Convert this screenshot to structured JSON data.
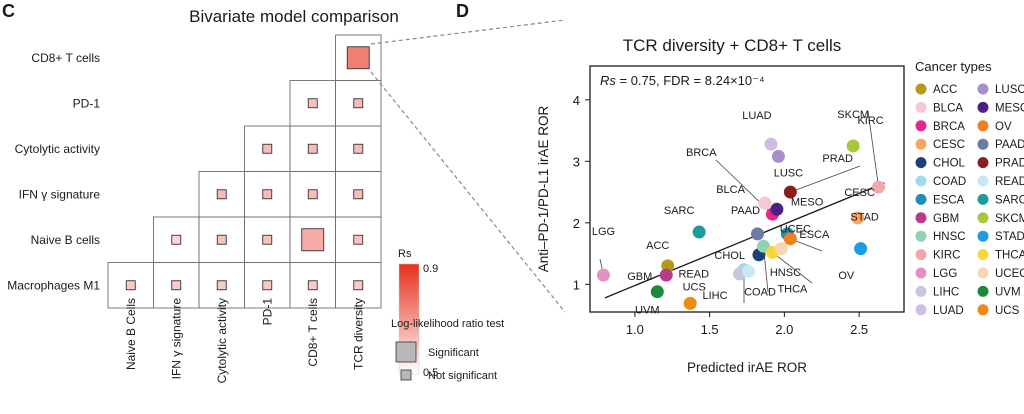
{
  "panel_c": {
    "letter": "C",
    "title": "Bivariate model comparison",
    "legend_rs_title": "Rs",
    "legend_rs_max": "0.9",
    "legend_rs_min": "0.5",
    "legend_test_title": "Log-likelihood ratio test",
    "legend_significant": "Significant",
    "legend_not_significant": "Not significant"
  },
  "panel_d": {
    "letter": "D",
    "stat_rs_symbol": "Rs",
    "stat_rs_rest": " = 0.75, FDR = 8.24×10⁻⁴",
    "legend_title": "Cancer types"
  },
  "colors": {
    "heat_low": "#ffffff",
    "heat_high": "#e8301d",
    "fit_line": "#1a1a1a",
    "dashed": "#888888"
  },
  "chart_data": [
    {
      "type": "heatmap",
      "title": "Bivariate model comparison",
      "rows": [
        "CD8+ T cells",
        "PD-1",
        "Cytolytic activity",
        "IFN γ signature",
        "Naive B cells",
        "Macrophages M1"
      ],
      "columns": [
        "Naive B Cells",
        "IFN γ signature",
        "Cytolytic activity",
        "PD-1",
        "CD8+ T cells",
        "TCR diversity"
      ],
      "color_scale": {
        "label": "Rs",
        "min": 0.5,
        "max": 0.9
      },
      "cells": [
        {
          "row": "CD8+ T cells",
          "col": "TCR diversity",
          "rs": 0.75,
          "significant": true
        },
        {
          "row": "PD-1",
          "col": "CD8+ T cells",
          "rs": 0.62,
          "significant": false
        },
        {
          "row": "PD-1",
          "col": "TCR diversity",
          "rs": 0.63,
          "significant": false
        },
        {
          "row": "Cytolytic activity",
          "col": "PD-1",
          "rs": 0.63,
          "significant": false
        },
        {
          "row": "Cytolytic activity",
          "col": "CD8+ T cells",
          "rs": 0.63,
          "significant": false
        },
        {
          "row": "Cytolytic activity",
          "col": "TCR diversity",
          "rs": 0.63,
          "significant": false
        },
        {
          "row": "IFN γ signature",
          "col": "Cytolytic activity",
          "rs": 0.63,
          "significant": false
        },
        {
          "row": "IFN γ signature",
          "col": "PD-1",
          "rs": 0.63,
          "significant": false
        },
        {
          "row": "IFN γ signature",
          "col": "CD8+ T cells",
          "rs": 0.63,
          "significant": false
        },
        {
          "row": "IFN γ signature",
          "col": "TCR diversity",
          "rs": 0.63,
          "significant": false
        },
        {
          "row": "Naive B cells",
          "col": "IFN γ signature",
          "rs": 0.58,
          "significant": false
        },
        {
          "row": "Naive B cells",
          "col": "Cytolytic activity",
          "rs": 0.62,
          "significant": false
        },
        {
          "row": "Naive B cells",
          "col": "PD-1",
          "rs": 0.62,
          "significant": false
        },
        {
          "row": "Naive B cells",
          "col": "CD8+ T cells",
          "rs": 0.66,
          "significant": true
        },
        {
          "row": "Naive B cells",
          "col": "TCR diversity",
          "rs": 0.62,
          "significant": false
        },
        {
          "row": "Macrophages M1",
          "col": "Naive B Cells",
          "rs": 0.6,
          "significant": false
        },
        {
          "row": "Macrophages M1",
          "col": "IFN γ signature",
          "rs": 0.6,
          "significant": false
        },
        {
          "row": "Macrophages M1",
          "col": "Cytolytic activity",
          "rs": 0.6,
          "significant": false
        },
        {
          "row": "Macrophages M1",
          "col": "PD-1",
          "rs": 0.6,
          "significant": false
        },
        {
          "row": "Macrophages M1",
          "col": "CD8+ T cells",
          "rs": 0.6,
          "significant": false
        },
        {
          "row": "Macrophages M1",
          "col": "TCR diversity",
          "rs": 0.6,
          "significant": false
        }
      ]
    },
    {
      "type": "scatter",
      "title": "TCR diversity + CD8+ T cells",
      "xlabel": "Predicted irAE ROR",
      "ylabel": "Anti–PD-1/PD-L1 irAE ROR",
      "xlim": [
        0.7,
        2.8
      ],
      "ylim": [
        0.55,
        4.55
      ],
      "xticks": [
        "1.0",
        "1.5",
        "2.0",
        "2.5"
      ],
      "xtick_values": [
        1.0,
        1.5,
        2.0,
        2.5
      ],
      "yticks": [
        "1",
        "2",
        "3",
        "4"
      ],
      "ytick_values": [
        1,
        2,
        3,
        4
      ],
      "fit_line": {
        "x": [
          0.8,
          2.67
        ],
        "y": [
          0.78,
          2.65
        ]
      },
      "points": [
        {
          "label": "ACC",
          "x": 1.22,
          "y": 1.3,
          "color": "#b49a1a"
        },
        {
          "label": "BLCA",
          "x": 1.87,
          "y": 2.32,
          "color": "#f7c8d4"
        },
        {
          "label": "BRCA",
          "x": 1.92,
          "y": 2.14,
          "color": "#e8268a"
        },
        {
          "label": "CESC",
          "x": 2.49,
          "y": 2.08,
          "color": "#f6a660"
        },
        {
          "label": "CHOL",
          "x": 1.83,
          "y": 1.48,
          "color": "#1d3f7a"
        },
        {
          "label": "COAD",
          "x": 1.73,
          "y": 1.24,
          "color": "#9ddcf0"
        },
        {
          "label": "ESCA",
          "x": 2.02,
          "y": 1.82,
          "color": "#1e8fb0"
        },
        {
          "label": "GBM",
          "x": 1.21,
          "y": 1.15,
          "color": "#b53c8c"
        },
        {
          "label": "HNSC",
          "x": 1.86,
          "y": 1.62,
          "color": "#8fd3b4"
        },
        {
          "label": "KIRC",
          "x": 2.63,
          "y": 2.58,
          "color": "#f2a7ab"
        },
        {
          "label": "LGG",
          "x": 0.79,
          "y": 1.15,
          "color": "#e591c3"
        },
        {
          "label": "LIHC",
          "x": 1.7,
          "y": 1.17,
          "color": "#c5c8dc"
        },
        {
          "label": "LUAD",
          "x": 1.91,
          "y": 3.28,
          "color": "#cfbde6"
        },
        {
          "label": "LUSC",
          "x": 1.96,
          "y": 3.08,
          "color": "#a78fcd"
        },
        {
          "label": "MESO",
          "x": 1.95,
          "y": 2.22,
          "color": "#4d2184"
        },
        {
          "label": "OV",
          "x": 2.04,
          "y": 1.74,
          "color": "#f07f22"
        },
        {
          "label": "PAAD",
          "x": 1.82,
          "y": 1.82,
          "color": "#6e7aa6"
        },
        {
          "label": "PRAD",
          "x": 2.04,
          "y": 2.5,
          "color": "#8c1d1d"
        },
        {
          "label": "READ",
          "x": 1.76,
          "y": 1.21,
          "color": "#c8e8f6"
        },
        {
          "label": "SARC",
          "x": 1.43,
          "y": 1.85,
          "color": "#1e9b9b"
        },
        {
          "label": "SKCM",
          "x": 2.46,
          "y": 3.25,
          "color": "#a8c83c"
        },
        {
          "label": "STAD",
          "x": 2.51,
          "y": 1.58,
          "color": "#1a9ee0"
        },
        {
          "label": "THCA",
          "x": 1.92,
          "y": 1.52,
          "color": "#f6d83a"
        },
        {
          "label": "UCEC",
          "x": 1.98,
          "y": 1.58,
          "color": "#f6d6b4"
        },
        {
          "label": "UVM",
          "x": 1.15,
          "y": 0.88,
          "color": "#1b8b3a"
        },
        {
          "label": "UCS",
          "x": 1.37,
          "y": 0.69,
          "color": "#f08a10"
        }
      ]
    }
  ]
}
